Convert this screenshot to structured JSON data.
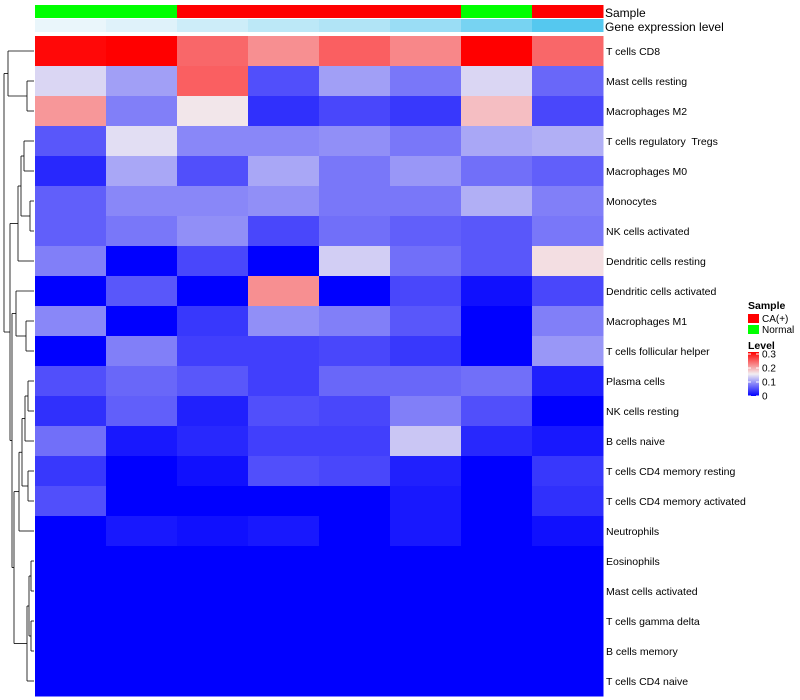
{
  "chart_data": {
    "type": "heatmap",
    "title": "",
    "annotations": [
      {
        "label": "Sample",
        "values": [
          "Normal",
          "Normal",
          "CA(+)",
          "CA(+)",
          "CA(+)",
          "CA(+)",
          "Normal",
          "CA(+)"
        ]
      },
      {
        "label": "Gene expression level",
        "values": [
          0.02,
          0.04,
          0.07,
          0.1,
          0.12,
          0.16,
          0.22,
          0.28
        ]
      }
    ],
    "rows": [
      "T cells CD8",
      "Mast cells resting",
      "Macrophages M2",
      "T cells regulatory  Tregs",
      "Macrophages M0",
      "Monocytes",
      "NK cells activated",
      "Dendritic cells resting",
      "Dendritic cells activated",
      "Macrophages M1",
      "T cells follicular helper",
      "Plasma cells",
      "NK cells resting",
      "B cells naive",
      "T cells CD4 memory resting",
      "T cells CD4 memory activated",
      "Neutrophils",
      "Eosinophils",
      "Mast cells activated",
      "T cells gamma delta",
      "B cells memory",
      "T cells CD4 naive"
    ],
    "values": [
      [
        0.295,
        0.3,
        0.235,
        0.21,
        0.24,
        0.215,
        0.3,
        0.235
      ],
      [
        0.135,
        0.1,
        0.24,
        0.05,
        0.1,
        0.075,
        0.135,
        0.065
      ],
      [
        0.205,
        0.08,
        0.155,
        0.03,
        0.045,
        0.035,
        0.18,
        0.045
      ],
      [
        0.055,
        0.14,
        0.085,
        0.085,
        0.09,
        0.075,
        0.105,
        0.11
      ],
      [
        0.025,
        0.105,
        0.05,
        0.105,
        0.075,
        0.095,
        0.07,
        0.06
      ],
      [
        0.06,
        0.085,
        0.085,
        0.09,
        0.075,
        0.075,
        0.11,
        0.08
      ],
      [
        0.06,
        0.075,
        0.09,
        0.045,
        0.07,
        0.06,
        0.055,
        0.075
      ],
      [
        0.08,
        0.0,
        0.045,
        0.0,
        0.13,
        0.07,
        0.055,
        0.16
      ],
      [
        0.0,
        0.055,
        0.0,
        0.21,
        0.0,
        0.045,
        0.01,
        0.045
      ],
      [
        0.085,
        0.0,
        0.035,
        0.09,
        0.08,
        0.055,
        0.0,
        0.08
      ],
      [
        0.0,
        0.08,
        0.04,
        0.04,
        0.045,
        0.035,
        0.0,
        0.095
      ],
      [
        0.05,
        0.065,
        0.055,
        0.04,
        0.065,
        0.065,
        0.07,
        0.02
      ],
      [
        0.03,
        0.06,
        0.02,
        0.05,
        0.045,
        0.08,
        0.05,
        0.0
      ],
      [
        0.07,
        0.015,
        0.025,
        0.04,
        0.04,
        0.125,
        0.025,
        0.015
      ],
      [
        0.035,
        0.0,
        0.01,
        0.05,
        0.045,
        0.02,
        0.0,
        0.035
      ],
      [
        0.05,
        0.0,
        0.0,
        0.0,
        0.0,
        0.015,
        0.0,
        0.03
      ],
      [
        0.0,
        0.015,
        0.01,
        0.015,
        0.0,
        0.015,
        0.0,
        0.01
      ],
      [
        0.0,
        0.0,
        0.0,
        0.0,
        0.0,
        0.0,
        0.0,
        0.0
      ],
      [
        0.0,
        0.0,
        0.0,
        0.0,
        0.0,
        0.0,
        0.0,
        0.0
      ],
      [
        0.0,
        0.0,
        0.0,
        0.0,
        0.0,
        0.0,
        0.0,
        0.0
      ],
      [
        0.0,
        0.0,
        0.0,
        0.0,
        0.0,
        0.0,
        0.0,
        0.0
      ],
      [
        0.0,
        0.0,
        0.0,
        0.0,
        0.0,
        0.0,
        0.0,
        0.0
      ]
    ],
    "color_scale": {
      "min": 0,
      "max": 0.3,
      "stops": [
        {
          "value": 0,
          "color": "#0000ff"
        },
        {
          "value": 0.15,
          "color": "#f2eef2"
        },
        {
          "value": 0.3,
          "color": "#ff0000"
        }
      ]
    },
    "legends": {
      "sample": {
        "title": "Sample",
        "entries": [
          {
            "label": "CA(+)",
            "color": "#ff0000"
          },
          {
            "label": "Normal",
            "color": "#00ff00"
          }
        ]
      },
      "level": {
        "title": "Level",
        "ticks": [
          {
            "label": "0.3",
            "value": 0.3
          },
          {
            "label": "0.2",
            "value": 0.2
          },
          {
            "label": "0.1",
            "value": 0.1
          },
          {
            "label": "0",
            "value": 0
          }
        ]
      }
    },
    "sample_colors": {
      "CA(+)": "#ff0000",
      "Normal": "#00ff00"
    },
    "gene_expression_colors": {
      "low": "#eaf6fb",
      "high": "#55c8ef"
    },
    "row_dendrogram": "left side, hierarchical clustering"
  }
}
